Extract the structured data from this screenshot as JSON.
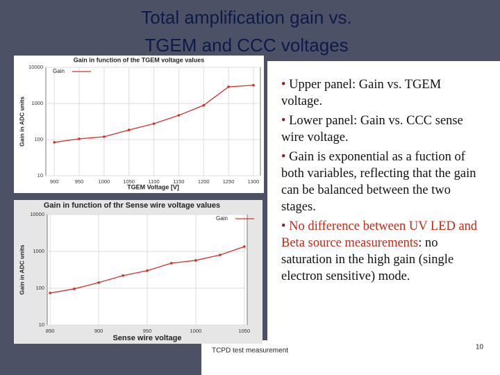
{
  "title_lines": [
    "Total amplification gain vs.",
    "TGEM and CCC voltages"
  ],
  "bullets": [
    "Upper panel: Gain vs. TGEM voltage.",
    "Lower panel: Gain vs. CCC sense wire voltage.",
    "Gain is exponential as a fuction of both variables, reflecting that the gain can be balanced between the two stages."
  ],
  "last_bullet": {
    "highlight": "No difference between UV LED and Beta source measurements",
    "rest": ": no saturation in the high gain (single electron sensitive) mode."
  },
  "footer": "TCPD test measurement",
  "page_number": "10",
  "chart_data": [
    {
      "type": "line",
      "title": "Gain in function of the TGEM voltage values",
      "x_label": "TGEM Voltage [V]",
      "y_label": "Gain in ADC units",
      "x": [
        900,
        950,
        1000,
        1050,
        1100,
        1150,
        1200,
        1250,
        1300
      ],
      "series": [
        {
          "name": "Gain",
          "color": "#d0302c",
          "values": [
            84,
            105,
            120,
            185,
            275,
            470,
            890,
            2900,
            3200
          ]
        }
      ],
      "xlim": [
        883,
        1314
      ],
      "xticks": [
        900,
        950,
        1000,
        1050,
        1100,
        1150,
        1200,
        1250,
        1300
      ],
      "ylim": [
        10,
        10000
      ],
      "yticks": [
        10,
        100,
        1000,
        10000
      ],
      "log_y": true,
      "grid": true,
      "legend": "top-left"
    },
    {
      "type": "line",
      "title": "Gain in function of thr Sense wire voltage values",
      "x_label": "Sense wire voltage",
      "y_label": "Gain in ADC units",
      "x": [
        850,
        875,
        900,
        925,
        950,
        975,
        1000,
        1025,
        1050
      ],
      "series": [
        {
          "name": "Gain",
          "color": "#d0302c",
          "values": [
            74,
            96,
            142,
            220,
            300,
            480,
            570,
            800,
            1350
          ]
        }
      ],
      "xlim": [
        847,
        1053
      ],
      "xticks": [
        850,
        900,
        950,
        1000,
        1050
      ],
      "ylim": [
        10,
        10000
      ],
      "yticks": [
        10,
        100,
        1000,
        10000
      ],
      "log_y": true,
      "grid": true,
      "legend": "top-right"
    }
  ]
}
